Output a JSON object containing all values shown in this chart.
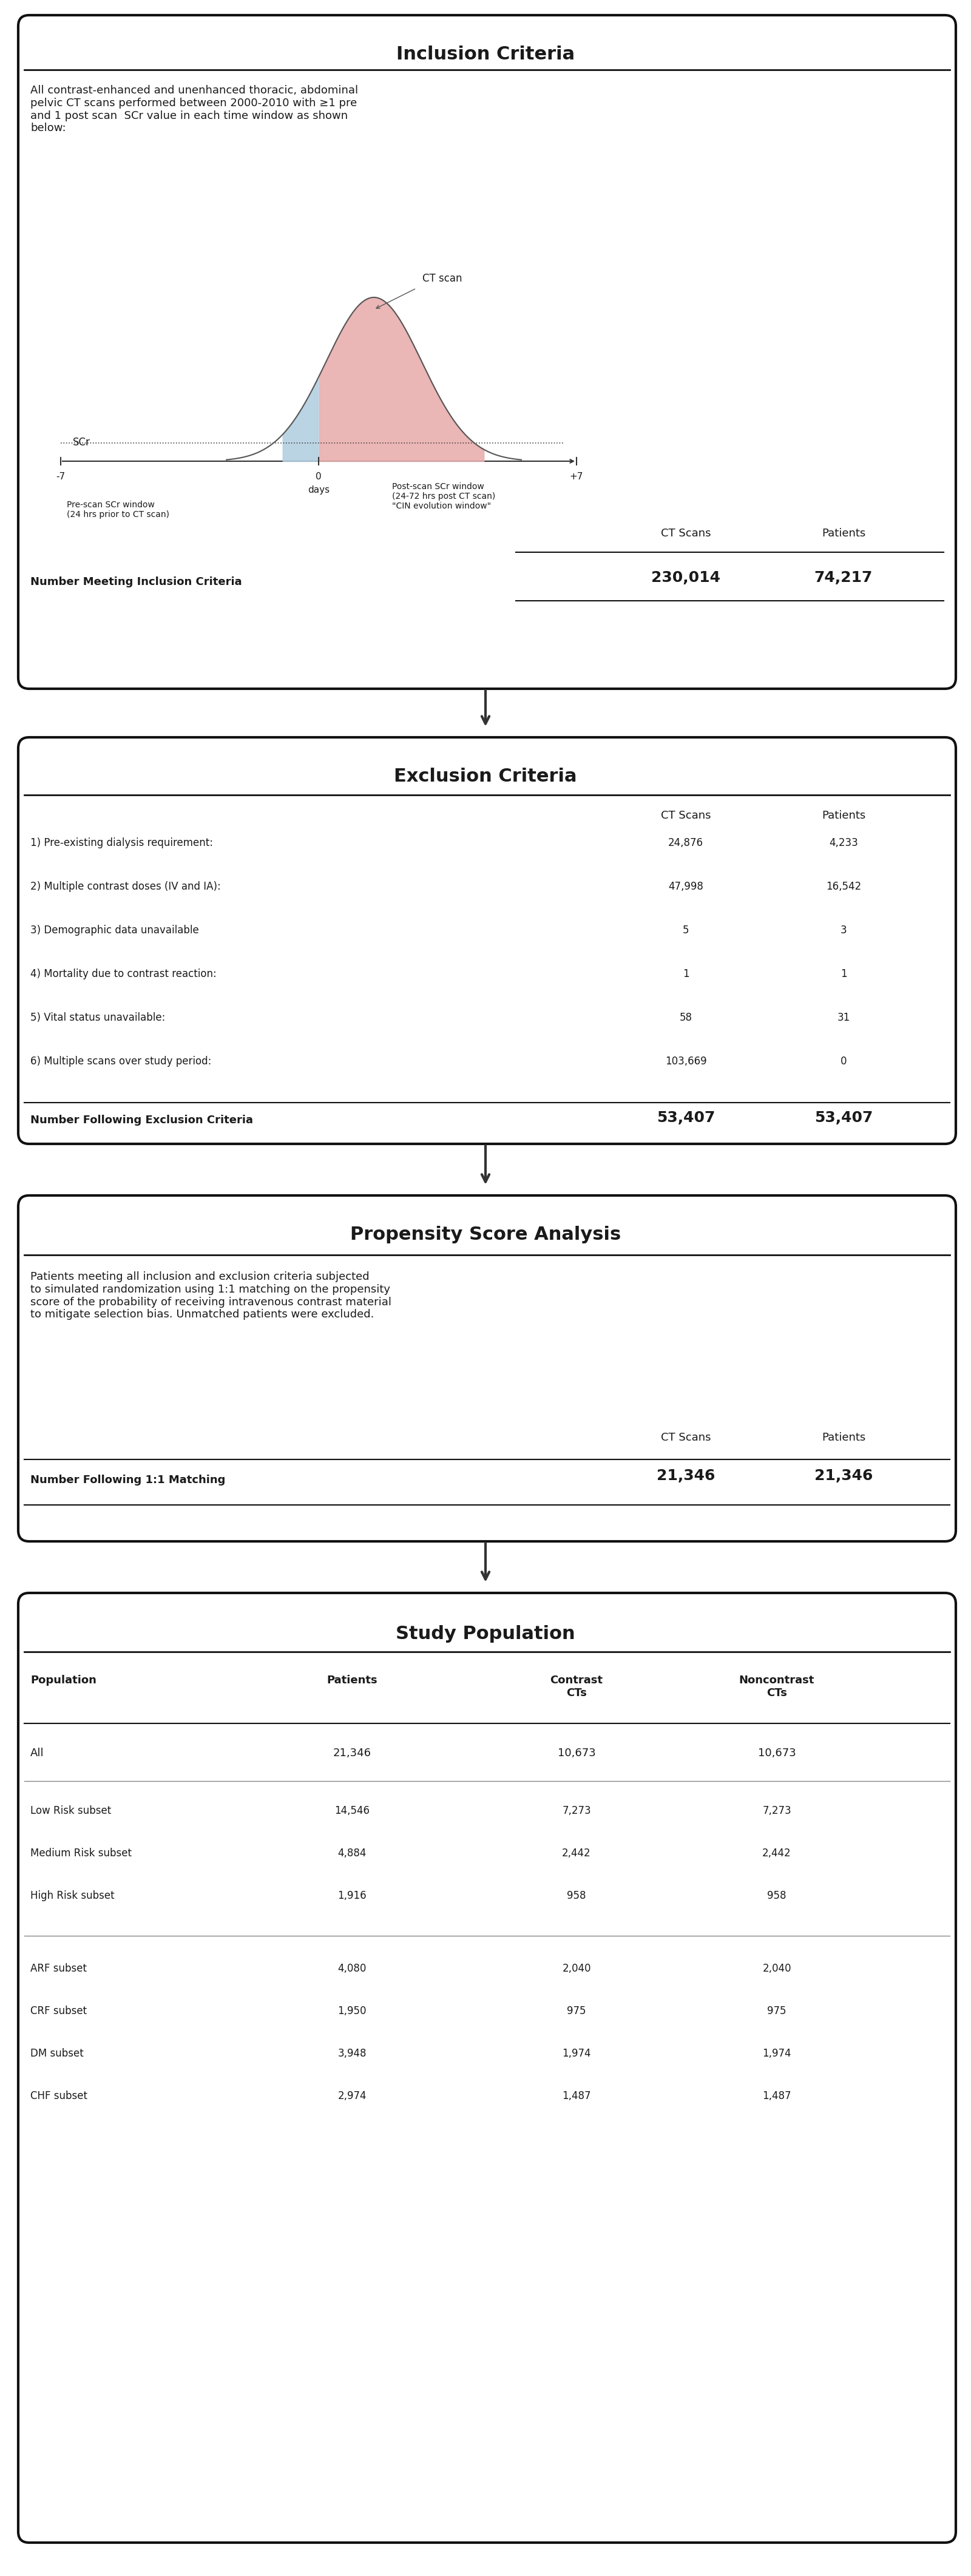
{
  "inclusion_title": "Inclusion Criteria",
  "inclusion_text": "All contrast-enhanced and unenhanced thoracic, abdominal\npelvic CT scans performed between 2000-2010 with ≥1 pre\nand 1 post scan  SCr value in each time window as shown\nbelow:",
  "diagram_label_scr": "SCr",
  "diagram_label_ctscan": "CT scan",
  "diagram_label_prescan": "Pre-scan SCr window\n(24 hrs prior to CT scan)",
  "diagram_label_postscan": "Post-scan SCr window\n(24-72 hrs post CT scan)\n\"CIN evolution window\"",
  "diagram_xlabel": "days",
  "inclusion_col1": "CT Scans",
  "inclusion_col2": "Patients",
  "inclusion_row_label": "Number Meeting Inclusion Criteria",
  "inclusion_val1": "230,014",
  "inclusion_val2": "74,217",
  "exclusion_title": "Exclusion Criteria",
  "exclusion_col1": "CT Scans",
  "exclusion_col2": "Patients",
  "exclusion_rows": [
    [
      "1) Pre-existing dialysis requirement:",
      "24,876",
      "4,233"
    ],
    [
      "2) Multiple contrast doses (IV and IA):",
      "47,998",
      "16,542"
    ],
    [
      "3) Demographic data unavailable",
      "5",
      "3"
    ],
    [
      "4) Mortality due to contrast reaction:",
      "1",
      "1"
    ],
    [
      "5) Vital status unavailable:",
      "58",
      "31"
    ],
    [
      "6) Multiple scans over study period:",
      "103,669",
      "0"
    ]
  ],
  "exclusion_row_label": "Number Following Exclusion Criteria",
  "exclusion_val1": "53,407",
  "exclusion_val2": "53,407",
  "propensity_title": "Propensity Score Analysis",
  "propensity_text": "Patients meeting all inclusion and exclusion criteria subjected\nto simulated randomization using 1:1 matching on the propensity\nscore of the probability of receiving intravenous contrast material\nto mitigate selection bias. Unmatched patients were excluded.",
  "propensity_row_label": "Number Following 1:1 Matching",
  "propensity_col1": "CT Scans",
  "propensity_col2": "Patients",
  "propensity_val1": "21,346",
  "propensity_val2": "21,346",
  "study_title": "Study Population",
  "study_headers": [
    "Population",
    "Patients",
    "Contrast\nCTs",
    "Noncontrast\nCTs"
  ],
  "study_rows": [
    [
      "All",
      "21,346",
      "10,673",
      "10,673"
    ],
    [
      "Low Risk subset",
      "14,546",
      "7,273",
      "7,273"
    ],
    [
      "Medium Risk subset",
      "4,884",
      "2,442",
      "2,442"
    ],
    [
      "High Risk subset",
      "1,916",
      "958",
      "958"
    ],
    [
      "ARF subset",
      "4,080",
      "2,040",
      "2,040"
    ],
    [
      "CRF subset",
      "1,950",
      "975",
      "975"
    ],
    [
      "DM subset",
      "3,948",
      "1,974",
      "1,974"
    ],
    [
      "CHF subset",
      "2,974",
      "1,487",
      "1,487"
    ]
  ],
  "bg_color": "#ffffff",
  "box_border_color": "#222222",
  "pre_scan_color": "#aecde0",
  "post_scan_color": "#e8aaaa"
}
